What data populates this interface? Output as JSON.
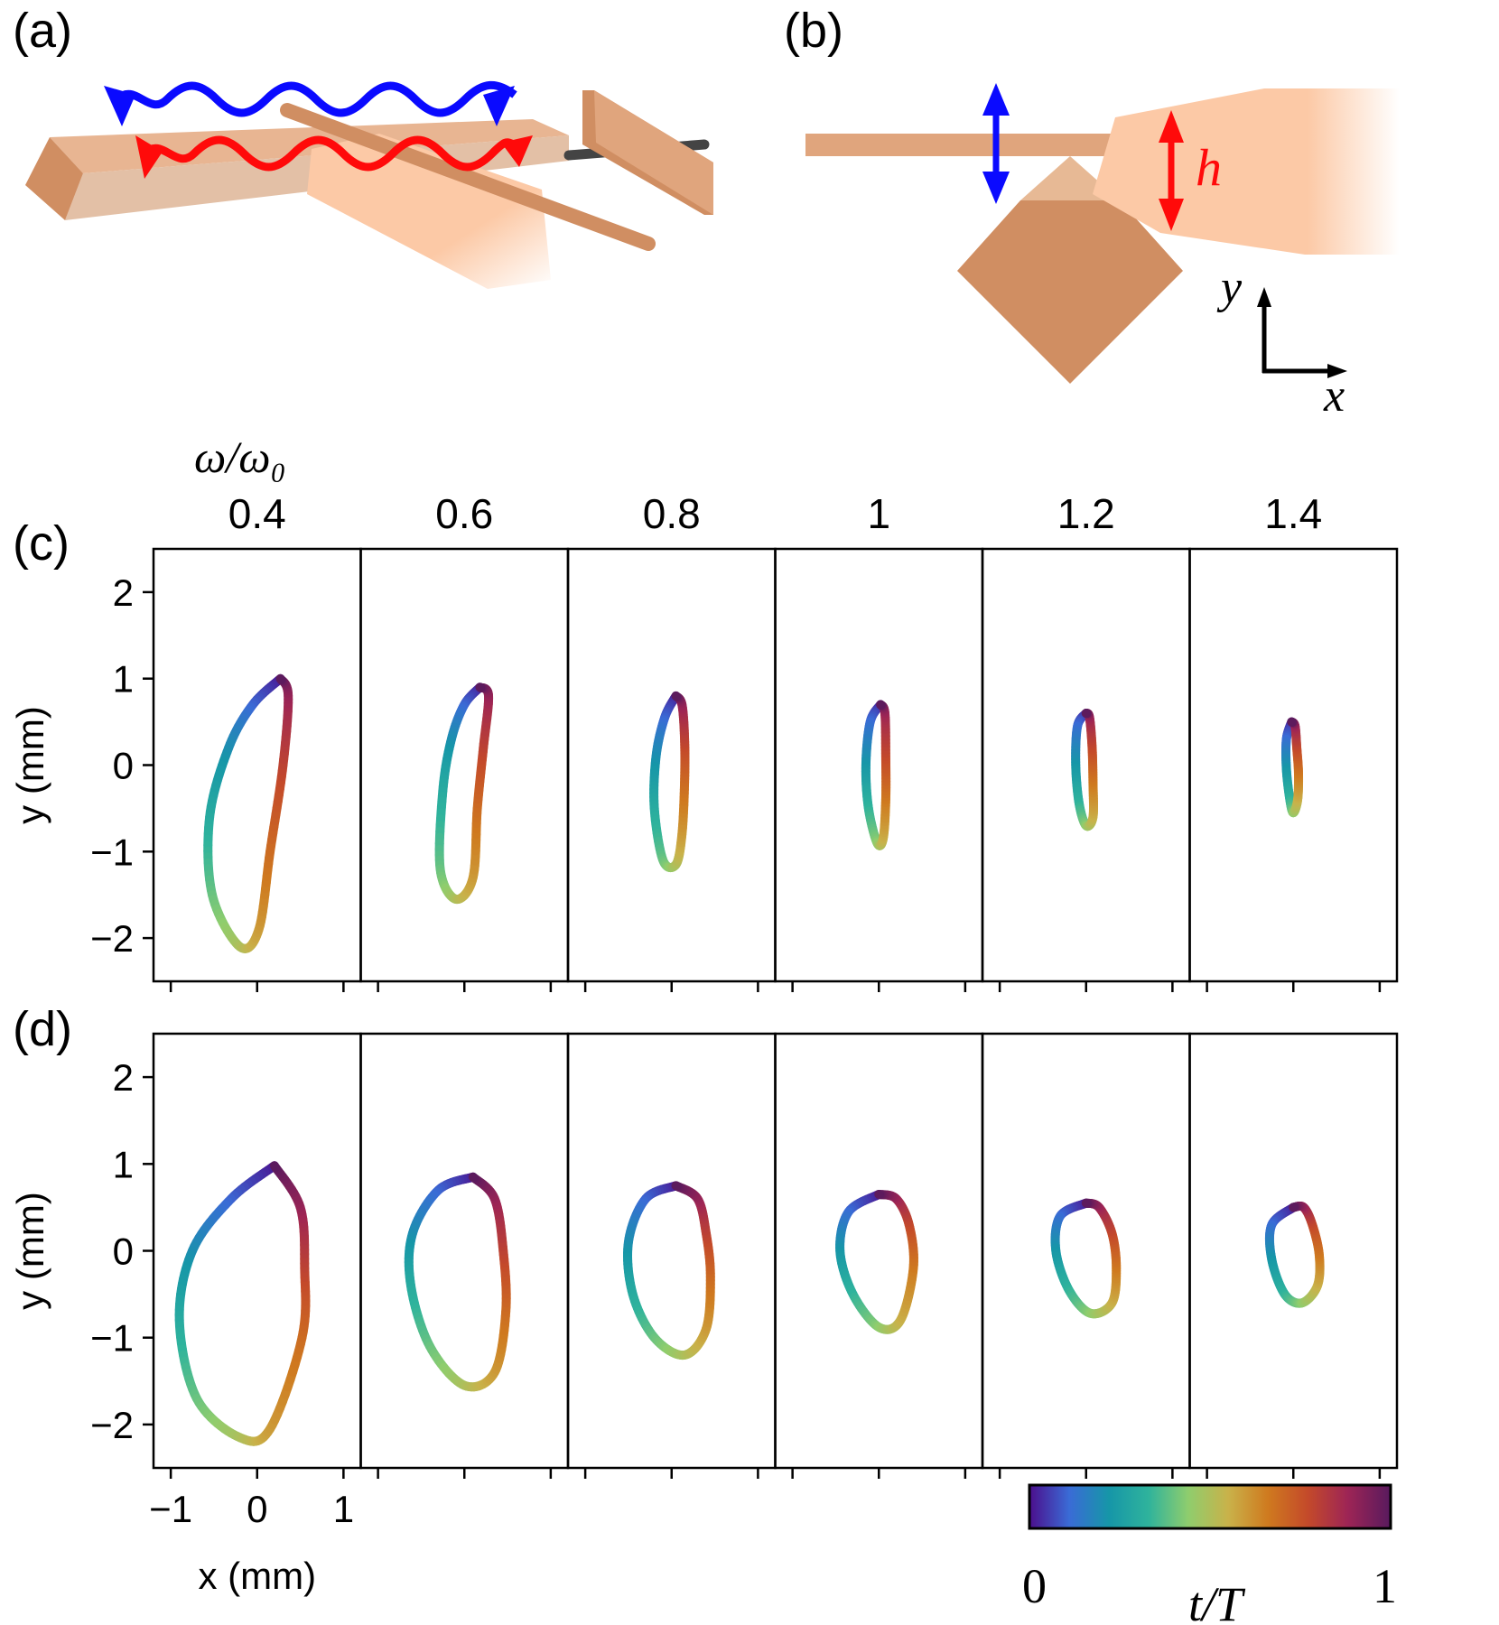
{
  "panel_labels": {
    "a": "(a)",
    "b": "(b)",
    "c": "(c)",
    "d": "(d)"
  },
  "schematic": {
    "h_label": "h",
    "axis_x": "x",
    "axis_y": "y",
    "colors": {
      "wood": "#d08e62",
      "wood_light": "#e8b592",
      "skin": "#fcc9a6",
      "blue": "#0a0aff",
      "red": "#ff0a0a"
    }
  },
  "chart_data": [
    {
      "type": "line",
      "panel": "(c)",
      "column_header_title": "ω/ω₀",
      "column_headers": [
        "0.4",
        "0.6",
        "0.8",
        "1",
        "1.2",
        "1.4"
      ],
      "ylabel": "y (mm)",
      "ylim": [
        -2.5,
        2.5
      ],
      "xlim": [
        -1.2,
        1.2
      ],
      "yticks": [
        "2",
        "1",
        "0",
        "−1",
        "−2"
      ],
      "grid": false,
      "series": [
        {
          "column": "0.4",
          "x": [
            0.27,
            -0.05,
            -0.33,
            -0.55,
            -0.52,
            -0.2,
            0.02,
            0.15,
            0.3,
            0.36,
            0.27
          ],
          "y": [
            1.0,
            0.7,
            0.2,
            -0.6,
            -1.5,
            -2.1,
            -1.9,
            -1.0,
            0.0,
            0.8,
            1.0
          ]
        },
        {
          "column": "0.6",
          "x": [
            0.18,
            0.0,
            -0.15,
            -0.25,
            -0.28,
            -0.1,
            0.1,
            0.15,
            0.22,
            0.28,
            0.18
          ],
          "y": [
            0.9,
            0.7,
            0.3,
            -0.3,
            -1.2,
            -1.55,
            -1.3,
            -0.5,
            0.2,
            0.8,
            0.9
          ]
        },
        {
          "column": "0.8",
          "x": [
            0.05,
            -0.08,
            -0.18,
            -0.2,
            -0.1,
            0.05,
            0.12,
            0.15,
            0.15,
            0.12,
            0.05
          ],
          "y": [
            0.8,
            0.55,
            0.1,
            -0.5,
            -1.1,
            -1.15,
            -0.8,
            -0.2,
            0.3,
            0.7,
            0.8
          ]
        },
        {
          "column": "1",
          "x": [
            0.02,
            -0.1,
            -0.15,
            -0.12,
            -0.02,
            0.05,
            0.08,
            0.08,
            0.07,
            0.02
          ],
          "y": [
            0.7,
            0.5,
            0.0,
            -0.5,
            -0.9,
            -0.85,
            -0.4,
            0.1,
            0.6,
            0.7
          ]
        },
        {
          "column": "1.2",
          "x": [
            0.0,
            -0.1,
            -0.12,
            -0.08,
            0.0,
            0.08,
            0.08,
            0.07,
            0.04,
            0.0
          ],
          "y": [
            0.6,
            0.45,
            0.0,
            -0.45,
            -0.7,
            -0.6,
            -0.2,
            0.2,
            0.55,
            0.6
          ]
        },
        {
          "column": "1.4",
          "x": [
            -0.02,
            -0.08,
            -0.08,
            -0.04,
            0.0,
            0.05,
            0.06,
            0.04,
            0.02,
            -0.02
          ],
          "y": [
            0.5,
            0.3,
            -0.05,
            -0.4,
            -0.55,
            -0.4,
            -0.1,
            0.2,
            0.45,
            0.5
          ]
        }
      ]
    },
    {
      "type": "line",
      "panel": "(d)",
      "ylabel": "y (mm)",
      "xlabel": "x (mm)",
      "ylim": [
        -2.5,
        2.5
      ],
      "xlim": [
        -1.2,
        1.2
      ],
      "yticks": [
        "2",
        "1",
        "0",
        "−1",
        "−2"
      ],
      "xticks": [
        "−1",
        "0",
        "1"
      ],
      "grid": false,
      "series": [
        {
          "column": "0.4",
          "x": [
            0.2,
            -0.3,
            -0.75,
            -0.9,
            -0.7,
            -0.2,
            0.15,
            0.52,
            0.55,
            0.5,
            0.2
          ],
          "y": [
            0.98,
            0.6,
            0.0,
            -0.8,
            -1.7,
            -2.15,
            -2.05,
            -1.0,
            -0.2,
            0.5,
            0.98
          ]
        },
        {
          "column": "0.6",
          "x": [
            0.1,
            -0.3,
            -0.6,
            -0.62,
            -0.4,
            0.0,
            0.35,
            0.48,
            0.45,
            0.35,
            0.1
          ],
          "y": [
            0.85,
            0.7,
            0.2,
            -0.4,
            -1.1,
            -1.55,
            -1.4,
            -0.7,
            0.0,
            0.6,
            0.85
          ]
        },
        {
          "column": "0.8",
          "x": [
            0.05,
            -0.3,
            -0.5,
            -0.45,
            -0.2,
            0.15,
            0.4,
            0.45,
            0.4,
            0.3,
            0.05
          ],
          "y": [
            0.75,
            0.6,
            0.1,
            -0.5,
            -1.0,
            -1.2,
            -0.9,
            -0.3,
            0.2,
            0.6,
            0.75
          ]
        },
        {
          "column": "1",
          "x": [
            0.0,
            -0.35,
            -0.45,
            -0.3,
            0.0,
            0.25,
            0.4,
            0.35,
            0.2,
            0.0
          ],
          "y": [
            0.65,
            0.45,
            0.0,
            -0.5,
            -0.88,
            -0.8,
            -0.2,
            0.3,
            0.6,
            0.65
          ]
        },
        {
          "column": "1.2",
          "x": [
            0.0,
            -0.3,
            -0.35,
            -0.2,
            0.05,
            0.3,
            0.35,
            0.3,
            0.15,
            0.0
          ],
          "y": [
            0.55,
            0.4,
            0.0,
            -0.45,
            -0.72,
            -0.6,
            -0.2,
            0.2,
            0.5,
            0.55
          ]
        },
        {
          "column": "1.4",
          "x": [
            0.0,
            -0.25,
            -0.25,
            -0.1,
            0.1,
            0.28,
            0.3,
            0.22,
            0.12,
            0.0
          ],
          "y": [
            0.5,
            0.3,
            -0.1,
            -0.5,
            -0.6,
            -0.4,
            -0.05,
            0.3,
            0.5,
            0.5
          ]
        }
      ]
    }
  ],
  "colorbar": {
    "min_label": "0",
    "max_label": "1",
    "label": "t/T",
    "colors": [
      "#4b0e8c",
      "#3a6bd6",
      "#1696a8",
      "#2fb39c",
      "#8fcd6d",
      "#c9b24a",
      "#cf7a1f",
      "#c44a2a",
      "#9e2555",
      "#581a5e"
    ]
  }
}
